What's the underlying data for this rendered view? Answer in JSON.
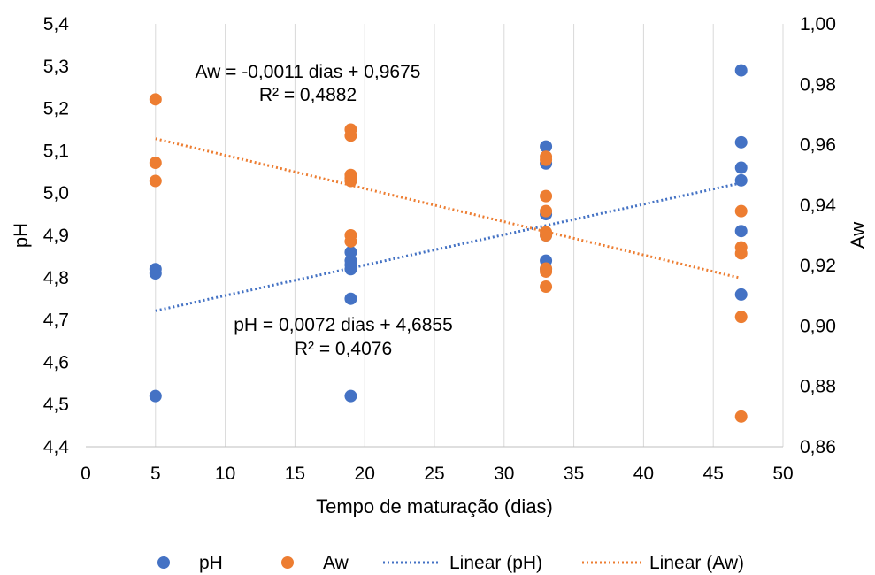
{
  "chart_data": {
    "type": "scatter",
    "xlabel": "Tempo de maturação (dias)",
    "ylabel_left": "pH",
    "ylabel_right": "Aw",
    "xlim": [
      0,
      50
    ],
    "ylim_left": [
      4.4,
      5.4
    ],
    "ylim_right": [
      0.86,
      1.0
    ],
    "x_ticks": [
      "0",
      "5",
      "10",
      "15",
      "20",
      "25",
      "30",
      "35",
      "40",
      "45",
      "50"
    ],
    "y_left_ticks": [
      "4,4",
      "4,5",
      "4,6",
      "4,7",
      "4,8",
      "4,9",
      "5,0",
      "5,1",
      "5,2",
      "5,3",
      "5,4"
    ],
    "y_right_ticks": [
      "0,86",
      "0,88",
      "0,90",
      "0,92",
      "0,94",
      "0,96",
      "0,98",
      "1,00"
    ],
    "grid": "vertical",
    "legend_position": "bottom",
    "colors": {
      "ph": "#4472C4",
      "aw": "#ED7D31",
      "grid": "#D9D9D9",
      "axis": "#BFBFBF"
    },
    "series": [
      {
        "name": "pH",
        "axis": "left",
        "points": [
          [
            5,
            4.82
          ],
          [
            5,
            4.81
          ],
          [
            5,
            4.52
          ],
          [
            19,
            4.86
          ],
          [
            19,
            4.84
          ],
          [
            19,
            4.83
          ],
          [
            19,
            4.82
          ],
          [
            19,
            4.75
          ],
          [
            19,
            4.52
          ],
          [
            33,
            5.11
          ],
          [
            33,
            5.07
          ],
          [
            33,
            4.95
          ],
          [
            33,
            4.9
          ],
          [
            33,
            4.84
          ],
          [
            33,
            4.82
          ],
          [
            47,
            5.29
          ],
          [
            47,
            5.12
          ],
          [
            47,
            5.06
          ],
          [
            47,
            5.03
          ],
          [
            47,
            4.91
          ],
          [
            47,
            4.76
          ]
        ]
      },
      {
        "name": "Aw",
        "axis": "right",
        "points": [
          [
            5,
            0.975
          ],
          [
            5,
            0.954
          ],
          [
            5,
            0.948
          ],
          [
            19,
            0.965
          ],
          [
            19,
            0.963
          ],
          [
            19,
            0.95
          ],
          [
            19,
            0.949
          ],
          [
            19,
            0.948
          ],
          [
            19,
            0.93
          ],
          [
            19,
            0.928
          ],
          [
            33,
            0.956
          ],
          [
            33,
            0.955
          ],
          [
            33,
            0.943
          ],
          [
            33,
            0.938
          ],
          [
            33,
            0.931
          ],
          [
            33,
            0.93
          ],
          [
            33,
            0.919
          ],
          [
            33,
            0.918
          ],
          [
            33,
            0.913
          ],
          [
            47,
            0.938
          ],
          [
            47,
            0.926
          ],
          [
            47,
            0.924
          ],
          [
            47,
            0.903
          ],
          [
            47,
            0.87
          ]
        ]
      }
    ],
    "trendlines": [
      {
        "name": "Linear (pH)",
        "axis": "left",
        "slope": 0.0072,
        "intercept": 4.6855,
        "x_range": [
          5,
          47
        ]
      },
      {
        "name": "Linear (Aw)",
        "axis": "right",
        "slope": -0.0011,
        "intercept": 0.9675,
        "x_range": [
          5,
          47
        ]
      }
    ],
    "annotations": {
      "aw_equation": "Aw = -0,0011 dias + 0,9675",
      "aw_r2": "R² = 0,4882",
      "ph_equation": "pH = 0,0072 dias + 4,6855",
      "ph_r2": "R² = 0,4076"
    },
    "legend": [
      "pH",
      "Aw",
      "Linear (pH)",
      "Linear (Aw)"
    ]
  }
}
